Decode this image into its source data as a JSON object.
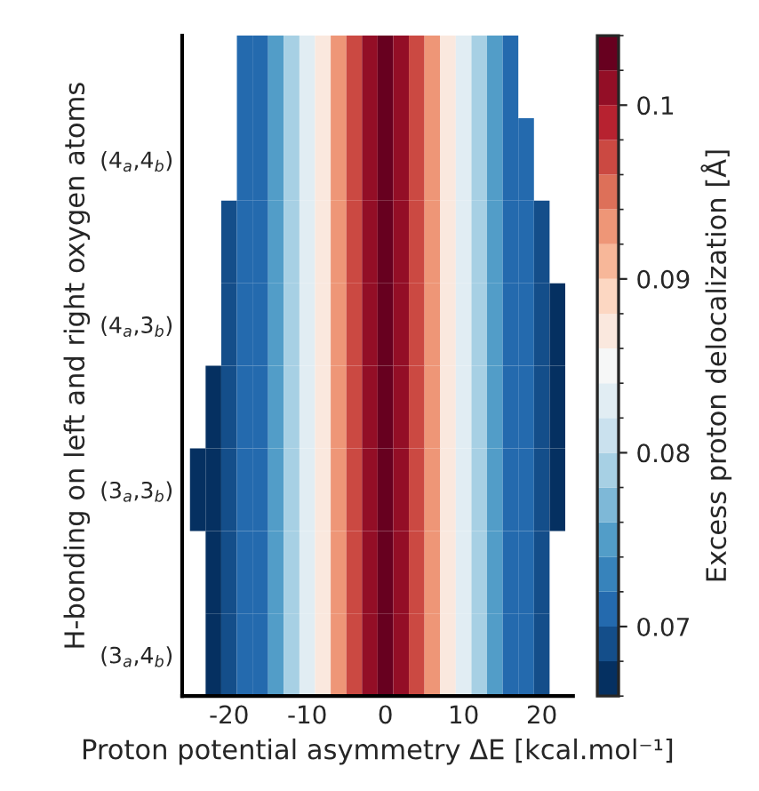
{
  "chart_data": {
    "type": "heatmap",
    "xlabel": "Proton potential asymmetry ΔE [kcal.mol⁻¹]",
    "ylabel": "H-bonding on left and right oxygen atoms",
    "clabel": "Excess proton delocalization [Å]",
    "x": [
      -24,
      -22,
      -20,
      -18,
      -16,
      -14,
      -12,
      -10,
      -8,
      -6,
      -4,
      -2,
      0,
      2,
      4,
      6,
      8,
      10,
      12,
      14,
      16,
      18,
      20,
      22
    ],
    "y_categories": [
      null,
      "(4$_{a}$,4$_{b}$)",
      null,
      "(4$_{a}$,3$_{b}$)",
      null,
      "(3$_{a}$,3$_{b}$)",
      null,
      "(3$_{a}$,4$_{b}$)"
    ],
    "xlim": [
      -26,
      24
    ],
    "xticks": [
      -20,
      -10,
      0,
      10,
      20
    ],
    "clim": [
      0.066,
      0.104
    ],
    "cticks": [
      0.07,
      0.08,
      0.09,
      0.1
    ],
    "cells": [
      [
        null,
        null,
        null,
        0.07,
        0.072,
        0.075,
        0.078,
        0.082,
        0.087,
        0.092,
        0.096,
        0.1,
        0.102,
        0.1,
        0.096,
        0.092,
        0.087,
        0.082,
        0.078,
        0.075,
        0.072,
        null,
        null,
        null
      ],
      [
        null,
        null,
        null,
        0.07,
        0.072,
        0.075,
        0.078,
        0.082,
        0.087,
        0.092,
        0.096,
        0.1,
        0.102,
        0.1,
        0.096,
        0.092,
        0.087,
        0.082,
        0.078,
        0.075,
        0.072,
        0.07,
        null,
        null
      ],
      [
        null,
        null,
        0.068,
        0.07,
        0.072,
        0.075,
        0.078,
        0.082,
        0.087,
        0.092,
        0.096,
        0.1,
        0.102,
        0.1,
        0.096,
        0.092,
        0.087,
        0.082,
        0.078,
        0.075,
        0.072,
        0.07,
        0.068,
        null
      ],
      [
        null,
        null,
        0.068,
        0.07,
        0.072,
        0.075,
        0.078,
        0.082,
        0.087,
        0.092,
        0.096,
        0.1,
        0.102,
        0.1,
        0.096,
        0.092,
        0.087,
        0.082,
        0.078,
        0.075,
        0.072,
        0.07,
        0.068,
        0.067
      ],
      [
        null,
        0.067,
        0.068,
        0.07,
        0.072,
        0.075,
        0.078,
        0.082,
        0.087,
        0.092,
        0.096,
        0.1,
        0.102,
        0.1,
        0.096,
        0.092,
        0.087,
        0.082,
        0.078,
        0.075,
        0.072,
        0.07,
        0.068,
        0.067
      ],
      [
        0.066,
        0.067,
        0.068,
        0.07,
        0.072,
        0.075,
        0.078,
        0.082,
        0.087,
        0.092,
        0.096,
        0.1,
        0.102,
        0.1,
        0.096,
        0.092,
        0.087,
        0.082,
        0.078,
        0.075,
        0.072,
        0.07,
        0.068,
        0.067
      ],
      [
        null,
        0.067,
        0.068,
        0.07,
        0.072,
        0.075,
        0.078,
        0.082,
        0.087,
        0.092,
        0.096,
        0.1,
        0.102,
        0.1,
        0.096,
        0.092,
        0.087,
        0.082,
        0.078,
        0.075,
        0.072,
        0.07,
        0.068,
        null
      ],
      [
        null,
        0.067,
        0.068,
        0.07,
        0.072,
        0.075,
        0.078,
        0.082,
        0.087,
        0.092,
        0.096,
        0.1,
        0.102,
        0.1,
        0.096,
        0.092,
        0.087,
        0.082,
        0.078,
        0.075,
        0.072,
        0.07,
        0.068,
        null
      ]
    ]
  }
}
